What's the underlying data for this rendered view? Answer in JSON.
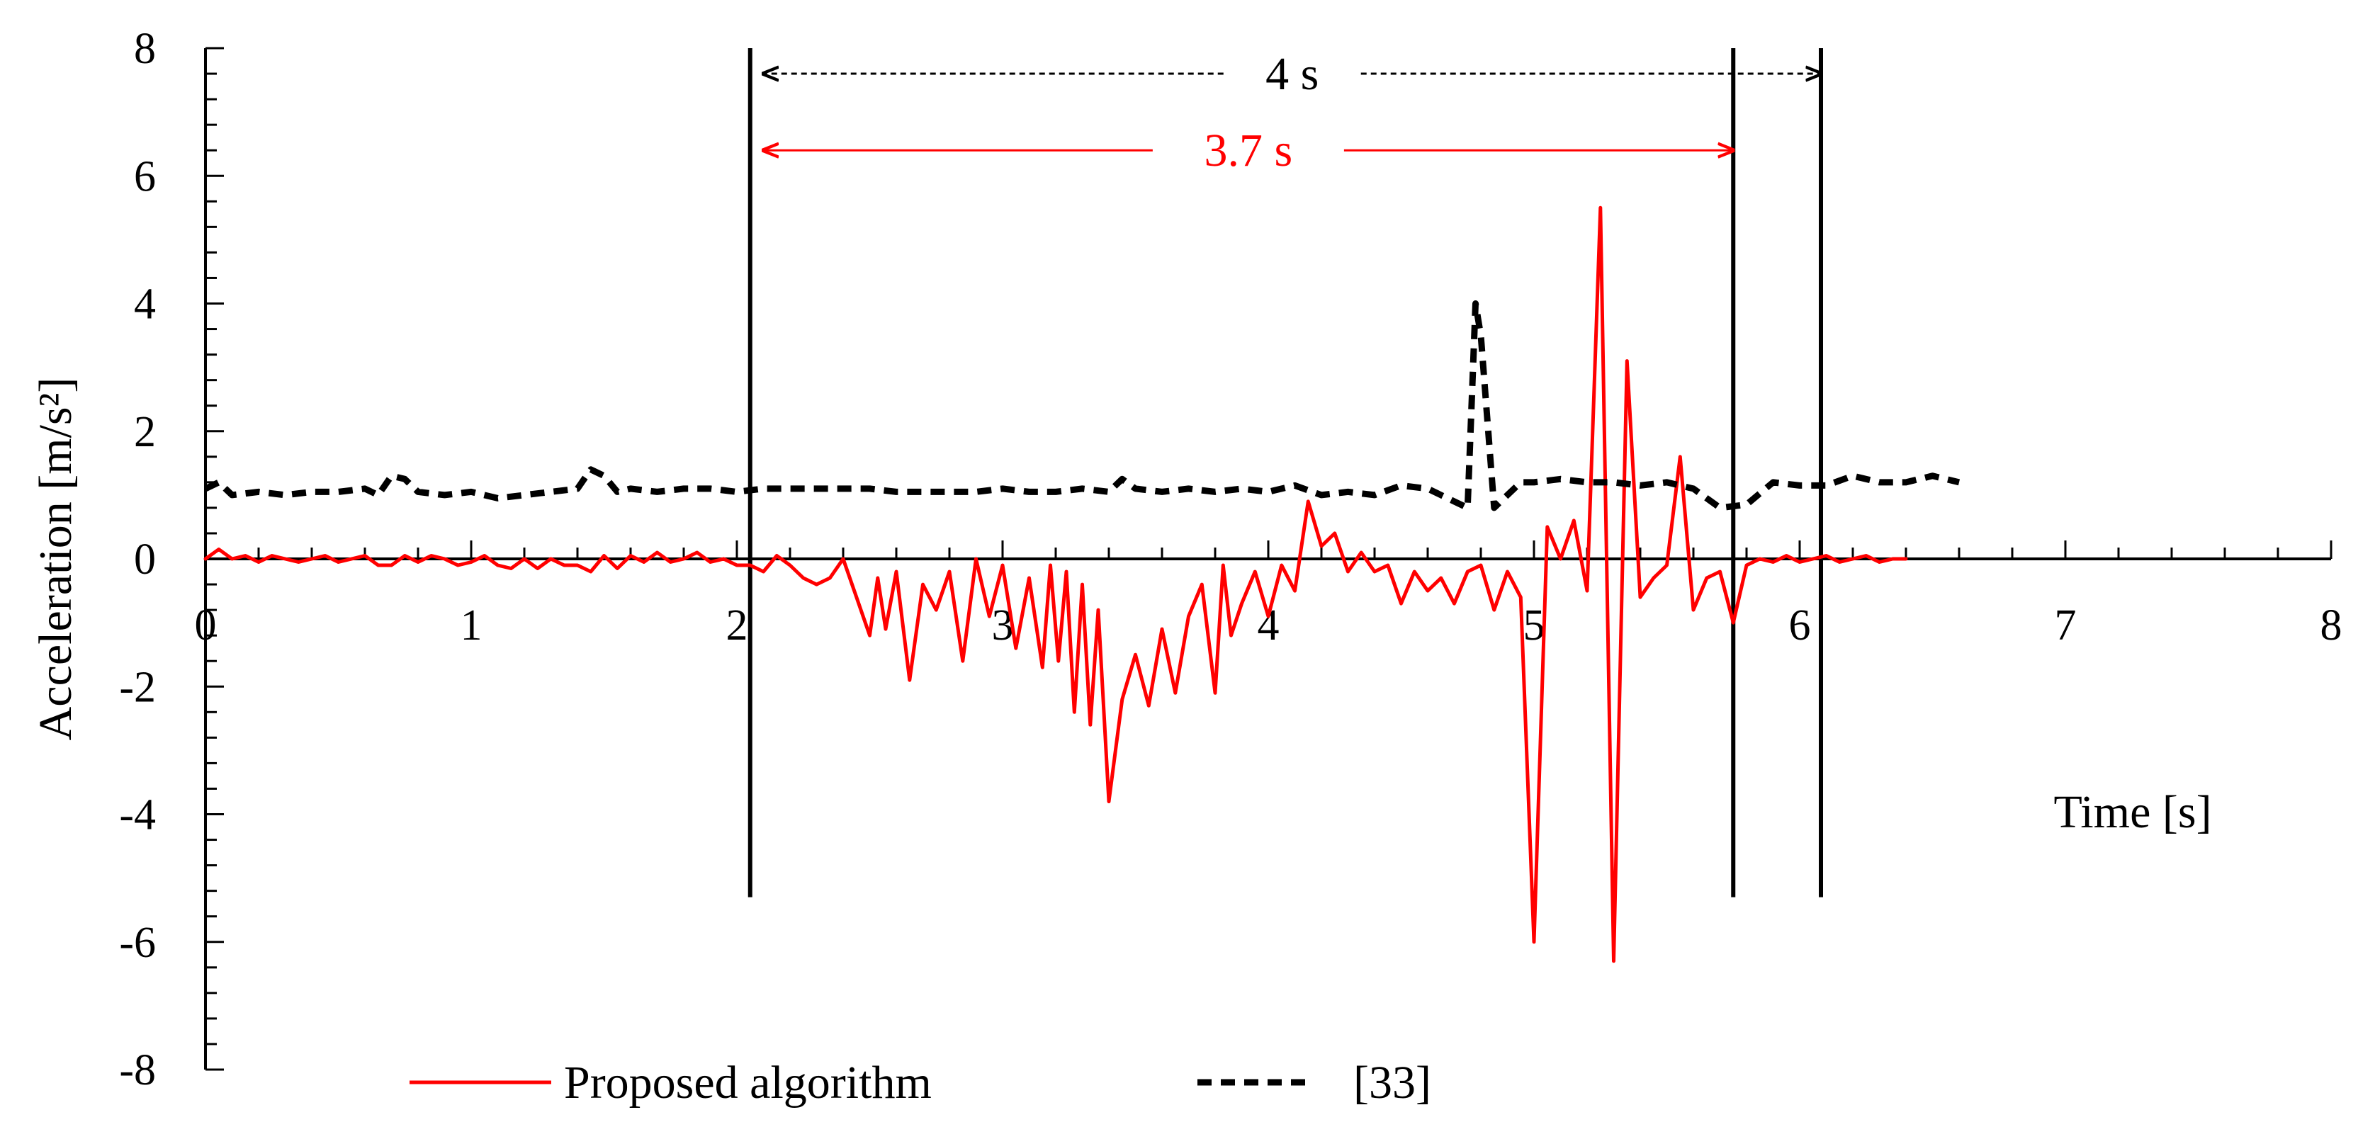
{
  "chart_data": {
    "type": "line",
    "xlabel": "Time [s]",
    "ylabel": "Acceleration [m/s²]",
    "xlim": [
      0,
      8
    ],
    "ylim": [
      -8,
      8
    ],
    "x_ticks": [
      0,
      1,
      2,
      3,
      4,
      5,
      6,
      7,
      8
    ],
    "y_ticks": [
      8,
      6,
      4,
      2,
      0,
      -2,
      -4,
      -6,
      -8
    ],
    "x_minor_step": 0.2,
    "y_minor_step": 0.4,
    "grid": false,
    "legend": {
      "position": "bottom",
      "entries": [
        {
          "label": "Proposed algorithm",
          "color": "#ff0000",
          "style": "solid"
        },
        {
          "label": "[33]",
          "color": "#000000",
          "style": "dashed"
        }
      ]
    },
    "vertical_markers": [
      {
        "x": 2.05,
        "y_range": [
          -5.3,
          8
        ]
      },
      {
        "x": 5.75,
        "y_range": [
          -5.3,
          8
        ]
      },
      {
        "x": 6.08,
        "y_range": [
          -5.3,
          8
        ]
      }
    ],
    "annotations": [
      {
        "label": "4 s",
        "x_from": 2.1,
        "x_to": 6.08,
        "y": 7.6,
        "color": "#000000",
        "style": "dashed"
      },
      {
        "label": "3.7 s",
        "x_from": 2.1,
        "x_to": 5.75,
        "y": 6.4,
        "color": "#ff0000",
        "style": "solid"
      }
    ],
    "series": [
      {
        "name": "Proposed algorithm",
        "color": "#ff0000",
        "style": "solid",
        "points": [
          [
            0.0,
            0.0
          ],
          [
            0.05,
            0.15
          ],
          [
            0.1,
            0.0
          ],
          [
            0.15,
            0.05
          ],
          [
            0.2,
            -0.05
          ],
          [
            0.25,
            0.05
          ],
          [
            0.3,
            0.0
          ],
          [
            0.35,
            -0.05
          ],
          [
            0.4,
            0.0
          ],
          [
            0.45,
            0.05
          ],
          [
            0.5,
            -0.05
          ],
          [
            0.55,
            0.0
          ],
          [
            0.6,
            0.05
          ],
          [
            0.65,
            -0.1
          ],
          [
            0.7,
            -0.1
          ],
          [
            0.75,
            0.05
          ],
          [
            0.8,
            -0.05
          ],
          [
            0.85,
            0.05
          ],
          [
            0.9,
            0.0
          ],
          [
            0.95,
            -0.1
          ],
          [
            1.0,
            -0.05
          ],
          [
            1.05,
            0.05
          ],
          [
            1.1,
            -0.1
          ],
          [
            1.15,
            -0.15
          ],
          [
            1.2,
            0.0
          ],
          [
            1.25,
            -0.15
          ],
          [
            1.3,
            0.0
          ],
          [
            1.35,
            -0.1
          ],
          [
            1.4,
            -0.1
          ],
          [
            1.45,
            -0.2
          ],
          [
            1.5,
            0.05
          ],
          [
            1.55,
            -0.15
          ],
          [
            1.6,
            0.05
          ],
          [
            1.65,
            -0.05
          ],
          [
            1.7,
            0.1
          ],
          [
            1.75,
            -0.05
          ],
          [
            1.8,
            0.0
          ],
          [
            1.85,
            0.1
          ],
          [
            1.9,
            -0.05
          ],
          [
            1.95,
            0.0
          ],
          [
            2.0,
            -0.1
          ],
          [
            2.05,
            -0.1
          ],
          [
            2.1,
            -0.2
          ],
          [
            2.15,
            0.05
          ],
          [
            2.2,
            -0.1
          ],
          [
            2.25,
            -0.3
          ],
          [
            2.3,
            -0.4
          ],
          [
            2.35,
            -0.3
          ],
          [
            2.4,
            0.0
          ],
          [
            2.45,
            -0.6
          ],
          [
            2.5,
            -1.2
          ],
          [
            2.53,
            -0.3
          ],
          [
            2.56,
            -1.1
          ],
          [
            2.6,
            -0.2
          ],
          [
            2.65,
            -1.9
          ],
          [
            2.7,
            -0.4
          ],
          [
            2.75,
            -0.8
          ],
          [
            2.8,
            -0.2
          ],
          [
            2.85,
            -1.6
          ],
          [
            2.9,
            0.0
          ],
          [
            2.95,
            -0.9
          ],
          [
            3.0,
            -0.1
          ],
          [
            3.05,
            -1.4
          ],
          [
            3.1,
            -0.3
          ],
          [
            3.15,
            -1.7
          ],
          [
            3.18,
            -0.1
          ],
          [
            3.21,
            -1.6
          ],
          [
            3.24,
            -0.2
          ],
          [
            3.27,
            -2.4
          ],
          [
            3.3,
            -0.4
          ],
          [
            3.33,
            -2.6
          ],
          [
            3.36,
            -0.8
          ],
          [
            3.4,
            -3.8
          ],
          [
            3.45,
            -2.2
          ],
          [
            3.5,
            -1.5
          ],
          [
            3.55,
            -2.3
          ],
          [
            3.6,
            -1.1
          ],
          [
            3.65,
            -2.1
          ],
          [
            3.7,
            -0.9
          ],
          [
            3.75,
            -0.4
          ],
          [
            3.8,
            -2.1
          ],
          [
            3.83,
            -0.1
          ],
          [
            3.86,
            -1.2
          ],
          [
            3.9,
            -0.7
          ],
          [
            3.95,
            -0.2
          ],
          [
            4.0,
            -0.9
          ],
          [
            4.05,
            -0.1
          ],
          [
            4.1,
            -0.5
          ],
          [
            4.15,
            0.9
          ],
          [
            4.2,
            0.2
          ],
          [
            4.25,
            0.4
          ],
          [
            4.3,
            -0.2
          ],
          [
            4.35,
            0.1
          ],
          [
            4.4,
            -0.2
          ],
          [
            4.45,
            -0.1
          ],
          [
            4.5,
            -0.7
          ],
          [
            4.55,
            -0.2
          ],
          [
            4.6,
            -0.5
          ],
          [
            4.65,
            -0.3
          ],
          [
            4.7,
            -0.7
          ],
          [
            4.75,
            -0.2
          ],
          [
            4.8,
            -0.1
          ],
          [
            4.85,
            -0.8
          ],
          [
            4.9,
            -0.2
          ],
          [
            4.95,
            -0.6
          ],
          [
            5.0,
            -6.0
          ],
          [
            5.05,
            0.5
          ],
          [
            5.1,
            0.0
          ],
          [
            5.15,
            0.6
          ],
          [
            5.2,
            -0.5
          ],
          [
            5.25,
            5.5
          ],
          [
            5.3,
            -6.3
          ],
          [
            5.35,
            3.1
          ],
          [
            5.4,
            -0.6
          ],
          [
            5.45,
            -0.3
          ],
          [
            5.5,
            -0.1
          ],
          [
            5.55,
            1.6
          ],
          [
            5.6,
            -0.8
          ],
          [
            5.65,
            -0.3
          ],
          [
            5.7,
            -0.2
          ],
          [
            5.75,
            -1.0
          ],
          [
            5.8,
            -0.1
          ],
          [
            5.85,
            0.0
          ],
          [
            5.9,
            -0.05
          ],
          [
            5.95,
            0.05
          ],
          [
            6.0,
            -0.05
          ],
          [
            6.05,
            0.0
          ],
          [
            6.1,
            0.05
          ],
          [
            6.15,
            -0.05
          ],
          [
            6.2,
            0.0
          ],
          [
            6.25,
            0.05
          ],
          [
            6.3,
            -0.05
          ],
          [
            6.35,
            0.0
          ],
          [
            6.4,
            0.0
          ]
        ]
      },
      {
        "name": "[33]",
        "color": "#000000",
        "style": "dashed",
        "points": [
          [
            0.0,
            1.1
          ],
          [
            0.05,
            1.2
          ],
          [
            0.1,
            1.0
          ],
          [
            0.2,
            1.05
          ],
          [
            0.3,
            1.0
          ],
          [
            0.4,
            1.05
          ],
          [
            0.5,
            1.05
          ],
          [
            0.6,
            1.1
          ],
          [
            0.65,
            1.0
          ],
          [
            0.7,
            1.3
          ],
          [
            0.75,
            1.25
          ],
          [
            0.8,
            1.05
          ],
          [
            0.9,
            1.0
          ],
          [
            1.0,
            1.05
          ],
          [
            1.1,
            0.95
          ],
          [
            1.2,
            1.0
          ],
          [
            1.3,
            1.05
          ],
          [
            1.4,
            1.1
          ],
          [
            1.45,
            1.4
          ],
          [
            1.5,
            1.3
          ],
          [
            1.55,
            1.05
          ],
          [
            1.6,
            1.1
          ],
          [
            1.7,
            1.05
          ],
          [
            1.8,
            1.1
          ],
          [
            1.9,
            1.1
          ],
          [
            2.0,
            1.05
          ],
          [
            2.1,
            1.1
          ],
          [
            2.2,
            1.1
          ],
          [
            2.3,
            1.1
          ],
          [
            2.4,
            1.1
          ],
          [
            2.5,
            1.1
          ],
          [
            2.6,
            1.05
          ],
          [
            2.7,
            1.05
          ],
          [
            2.8,
            1.05
          ],
          [
            2.9,
            1.05
          ],
          [
            3.0,
            1.1
          ],
          [
            3.1,
            1.05
          ],
          [
            3.2,
            1.05
          ],
          [
            3.3,
            1.1
          ],
          [
            3.4,
            1.05
          ],
          [
            3.45,
            1.25
          ],
          [
            3.5,
            1.1
          ],
          [
            3.6,
            1.05
          ],
          [
            3.7,
            1.1
          ],
          [
            3.8,
            1.05
          ],
          [
            3.9,
            1.1
          ],
          [
            4.0,
            1.05
          ],
          [
            4.1,
            1.15
          ],
          [
            4.2,
            1.0
          ],
          [
            4.3,
            1.05
          ],
          [
            4.4,
            1.0
          ],
          [
            4.5,
            1.15
          ],
          [
            4.6,
            1.1
          ],
          [
            4.7,
            0.9
          ],
          [
            4.75,
            0.8
          ],
          [
            4.78,
            4.0
          ],
          [
            4.8,
            3.5
          ],
          [
            4.85,
            0.8
          ],
          [
            4.9,
            1.0
          ],
          [
            4.95,
            1.2
          ],
          [
            5.0,
            1.2
          ],
          [
            5.1,
            1.25
          ],
          [
            5.2,
            1.2
          ],
          [
            5.3,
            1.2
          ],
          [
            5.4,
            1.15
          ],
          [
            5.5,
            1.2
          ],
          [
            5.6,
            1.1
          ],
          [
            5.7,
            0.8
          ],
          [
            5.8,
            0.85
          ],
          [
            5.9,
            1.2
          ],
          [
            6.0,
            1.15
          ],
          [
            6.1,
            1.15
          ],
          [
            6.2,
            1.3
          ],
          [
            6.3,
            1.2
          ],
          [
            6.4,
            1.2
          ],
          [
            6.5,
            1.3
          ],
          [
            6.6,
            1.2
          ]
        ]
      }
    ]
  }
}
